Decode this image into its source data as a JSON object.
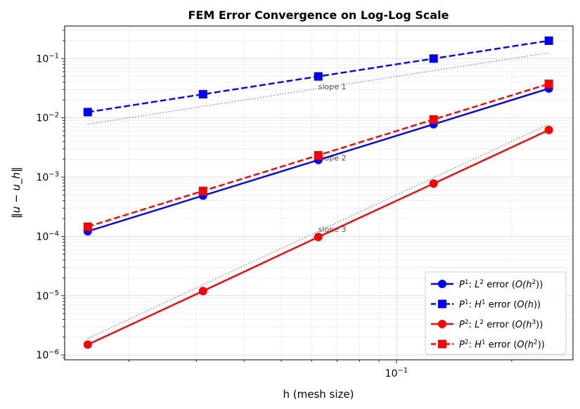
{
  "chart_data": {
    "type": "line",
    "title": "FEM Error Convergence on Log-Log Scale",
    "xlabel": "h (mesh size)",
    "ylabel": "‖u − u_h‖",
    "xscale": "log",
    "yscale": "log",
    "xlim": [
      0.0136,
      0.289
    ],
    "ylim": [
      8.3e-07,
      0.354
    ],
    "grid": {
      "major": true,
      "minor": true
    },
    "legend_placement": "lower-right",
    "x_ticks": [
      {
        "value": 0.1,
        "base": "10",
        "exp": "−1"
      }
    ],
    "y_ticks": [
      {
        "value": 1e-06,
        "base": "10",
        "exp": "−6"
      },
      {
        "value": 1e-05,
        "base": "10",
        "exp": "−5"
      },
      {
        "value": 0.0001,
        "base": "10",
        "exp": "−4"
      },
      {
        "value": 0.001,
        "base": "10",
        "exp": "−3"
      },
      {
        "value": 0.01,
        "base": "10",
        "exp": "−2"
      },
      {
        "value": 0.1,
        "base": "10",
        "exp": "−1"
      }
    ],
    "x": [
      0.015625,
      0.03125,
      0.0625,
      0.125,
      0.25
    ],
    "series": [
      {
        "name": "P1: L2 error (O(h2))",
        "legend": {
          "p": "1",
          "q": "L",
          "qs": "2",
          "rest": " error (",
          "o": "O(h",
          "os": "2",
          "end": "))"
        },
        "color": "#0000ff",
        "marker": "circle",
        "dash": "solid",
        "values": [
          0.000122,
          0.000488,
          0.00195,
          0.0078,
          0.03125
        ]
      },
      {
        "name": "P1: H1 error (O(h))",
        "legend": {
          "p": "1",
          "q": "H",
          "qs": "1",
          "rest": " error (",
          "o": "O(h",
          "os": "",
          "end": "))"
        },
        "color": "#0000ff",
        "marker": "square",
        "dash": "dashed",
        "values": [
          0.0125,
          0.025,
          0.05,
          0.1,
          0.2
        ]
      },
      {
        "name": "P2: L2 error (O(h3))",
        "legend": {
          "p": "2",
          "q": "L",
          "qs": "2",
          "rest": " error (",
          "o": "O(h",
          "os": "3",
          "end": "))"
        },
        "color": "#ff0000",
        "marker": "circle",
        "dash": "solid",
        "values": [
          1.5e-06,
          1.2e-05,
          9.8e-05,
          0.00078,
          0.00625
        ]
      },
      {
        "name": "P2: H1 error (O(h2))",
        "legend": {
          "p": "2",
          "q": "H",
          "qs": "1",
          "rest": " error (",
          "o": "O(h",
          "os": "2",
          "end": "))"
        },
        "color": "#ff0000",
        "marker": "square",
        "dash": "dashed",
        "values": [
          0.000146,
          0.000586,
          0.00234,
          0.0094,
          0.0375
        ]
      }
    ],
    "reference_lines": [
      {
        "label": "slope 1",
        "values": [
          0.0078,
          0.0156,
          0.03125,
          0.0625,
          0.125
        ]
      },
      {
        "label": "slope 2",
        "values": [
          0.000122,
          0.000488,
          0.00195,
          0.0078,
          0.03125
        ]
      },
      {
        "label": "slope 3",
        "values": [
          1.9e-06,
          1.53e-05,
          0.000122,
          0.000977,
          0.0078
        ]
      }
    ],
    "reference_color": "#808080"
  }
}
